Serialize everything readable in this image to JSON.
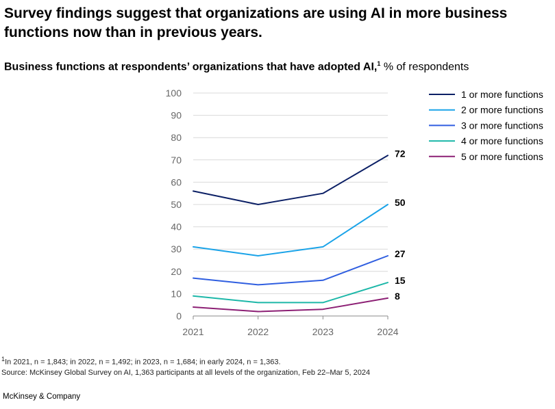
{
  "headline": "Survey findings suggest that organizations are using AI in more business functions now than in previous years.",
  "subtitle": {
    "bold": "Business functions at respondents’ organizations that have adopted AI,",
    "footnote_mark": "1",
    "unit": " % of respondents"
  },
  "footnotes": {
    "note1_mark": "1",
    "note1": "In 2021, n = 1,843; in 2022, n = 1,492; in 2023, n = 1,684; in early 2024, n = 1,363.",
    "source": "Source: McKinsey Global Survey on AI, 1,363 participants at all levels of the organization, Feb 22–Mar 5, 2024"
  },
  "brand": "McKinsey & Company",
  "chart_data": {
    "type": "line",
    "x": [
      "2021",
      "2022",
      "2023",
      "2024"
    ],
    "ylim": [
      0,
      100
    ],
    "yticks": [
      0,
      10,
      20,
      30,
      40,
      50,
      60,
      70,
      80,
      90,
      100
    ],
    "grid": true,
    "legend_position": "top-right",
    "series": [
      {
        "name": "1 or more functions",
        "color": "#0b1f65",
        "values": [
          56,
          50,
          55,
          72
        ],
        "end_label": "72"
      },
      {
        "name": "2 or more functions",
        "color": "#1aa3e8",
        "values": [
          31,
          27,
          31,
          50
        ],
        "end_label": "50"
      },
      {
        "name": "3 or more functions",
        "color": "#2f5ee0",
        "values": [
          17,
          14,
          16,
          27
        ],
        "end_label": "27"
      },
      {
        "name": "4 or more functions",
        "color": "#1cb7a8",
        "values": [
          9,
          6,
          6,
          15
        ],
        "end_label": "15"
      },
      {
        "name": "5 or more functions",
        "color": "#8c1f74",
        "values": [
          4,
          2,
          3,
          8
        ],
        "end_label": "8"
      }
    ]
  }
}
